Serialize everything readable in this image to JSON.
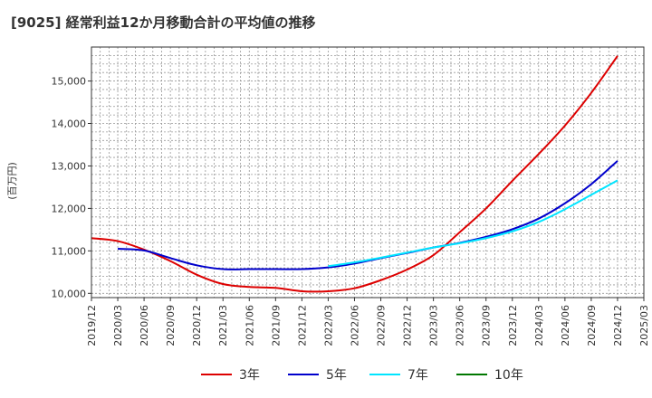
{
  "chart_data": {
    "type": "line",
    "title": "[9025]  経常利益12か月移動合計の平均値の推移",
    "ylabel": "(百万円)",
    "xlabel": "",
    "ylim": [
      9900,
      15800
    ],
    "yticks": [
      10000,
      11000,
      12000,
      13000,
      14000,
      15000
    ],
    "ytick_labels": [
      "10,000",
      "11,000",
      "12,000",
      "13,000",
      "14,000",
      "15,000"
    ],
    "xticks": [
      "2019/12",
      "2020/03",
      "2020/06",
      "2020/09",
      "2020/12",
      "2021/03",
      "2021/06",
      "2021/09",
      "2021/12",
      "2022/03",
      "2022/06",
      "2022/09",
      "2022/12",
      "2023/03",
      "2023/06",
      "2023/09",
      "2023/12",
      "2024/03",
      "2024/06",
      "2024/09",
      "2024/12",
      "2025/03"
    ],
    "grid": true,
    "legend_position": "bottom",
    "series": [
      {
        "name": "3年",
        "color": "#dd0000",
        "x": [
          "2019/12",
          "2020/03",
          "2020/06",
          "2020/09",
          "2020/12",
          "2021/03",
          "2021/06",
          "2021/09",
          "2021/12",
          "2022/03",
          "2022/06",
          "2022/09",
          "2022/12",
          "2023/03",
          "2023/06",
          "2023/09",
          "2023/12",
          "2024/03",
          "2024/06",
          "2024/09",
          "2024/12"
        ],
        "values": [
          11300,
          11230,
          11030,
          10760,
          10440,
          10220,
          10150,
          10130,
          10050,
          10050,
          10120,
          10310,
          10560,
          10900,
          11440,
          12000,
          12650,
          13280,
          13950,
          14720,
          15590
        ]
      },
      {
        "name": "5年",
        "color": "#0000cc",
        "x": [
          "2020/03",
          "2020/06",
          "2020/09",
          "2020/12",
          "2021/03",
          "2021/06",
          "2021/09",
          "2021/12",
          "2022/03",
          "2022/06",
          "2022/09",
          "2022/12",
          "2023/03",
          "2023/06",
          "2023/09",
          "2023/12",
          "2024/03",
          "2024/06",
          "2024/09",
          "2024/12"
        ],
        "values": [
          11050,
          11010,
          10830,
          10660,
          10570,
          10570,
          10570,
          10570,
          10610,
          10700,
          10830,
          10950,
          11080,
          11190,
          11330,
          11510,
          11760,
          12120,
          12570,
          13120
        ]
      },
      {
        "name": "7年",
        "color": "#00e5ff",
        "x": [
          "2022/03",
          "2022/06",
          "2022/09",
          "2022/12",
          "2023/03",
          "2023/06",
          "2023/09",
          "2023/12",
          "2024/03",
          "2024/06",
          "2024/09",
          "2024/12"
        ],
        "values": [
          10640,
          10730,
          10840,
          10960,
          11080,
          11180,
          11300,
          11460,
          11680,
          11980,
          12320,
          12660
        ]
      },
      {
        "name": "10年",
        "color": "#007700",
        "x": [],
        "values": []
      }
    ]
  }
}
